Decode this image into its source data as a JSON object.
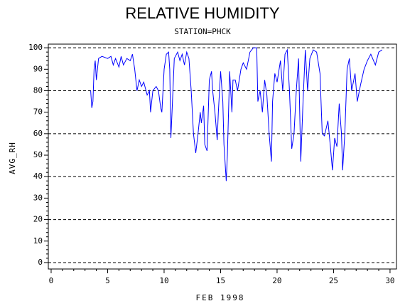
{
  "chart_data": {
    "type": "line",
    "title": "RELATIVE HUMIDITY",
    "subtitle": "STATION=PHCK",
    "x_label": "FEB 1998",
    "y_label": "AVG_RH",
    "xlim": [
      -0.25,
      30.57
    ],
    "ylim": [
      -3,
      101.7
    ],
    "xticks": [
      0,
      5,
      10,
      15,
      20,
      25,
      30
    ],
    "yticks": [
      0,
      10,
      20,
      30,
      40,
      50,
      60,
      70,
      80,
      90,
      100
    ],
    "grid": true,
    "series": [
      {
        "color": "#0000ff",
        "x": [
          3.5,
          3.6,
          3.7,
          3.8,
          3.9,
          4.0,
          4.2,
          4.5,
          5.0,
          5.3,
          5.5,
          5.7,
          6.0,
          6.2,
          6.4,
          6.7,
          7.0,
          7.2,
          7.4,
          7.6,
          7.8,
          8.0,
          8.2,
          8.5,
          8.7,
          8.8,
          9.0,
          9.3,
          9.5,
          9.7,
          9.8,
          10.0,
          10.2,
          10.4,
          10.5,
          10.6,
          10.7,
          10.9,
          11.2,
          11.4,
          11.6,
          11.8,
          12.0,
          12.2,
          12.4,
          12.6,
          12.8,
          13.0,
          13.2,
          13.3,
          13.5,
          13.6,
          13.8,
          14.0,
          14.2,
          14.3,
          14.5,
          14.7,
          14.8,
          15.0,
          15.2,
          15.3,
          15.5,
          15.6,
          15.8,
          16.0,
          16.1,
          16.3,
          16.5,
          16.8,
          17.0,
          17.3,
          17.6,
          17.9,
          18.2,
          18.3,
          18.5,
          18.7,
          18.9,
          19.1,
          19.3,
          19.5,
          19.6,
          19.8,
          20.0,
          20.3,
          20.5,
          20.7,
          20.9,
          21.1,
          21.3,
          21.5,
          21.7,
          21.9,
          22.1,
          22.3,
          22.5,
          22.7,
          22.9,
          23.2,
          23.5,
          23.8,
          24.0,
          24.2,
          24.5,
          24.7,
          24.9,
          25.1,
          25.3,
          25.5,
          25.7,
          25.8,
          26.0,
          26.2,
          26.4,
          26.6,
          26.9,
          27.1,
          27.4,
          27.7,
          28.0,
          28.3,
          28.7,
          29.0,
          29.3
        ],
        "values": [
          80,
          72,
          75,
          90,
          94,
          85,
          95,
          96,
          95,
          96,
          92,
          95,
          91,
          96,
          92,
          95,
          94,
          97,
          90,
          80,
          85,
          82,
          84,
          78,
          80,
          70,
          80,
          82,
          80,
          72,
          70,
          90,
          97,
          98,
          90,
          58,
          70,
          95,
          98,
          94,
          97,
          92,
          98,
          95,
          80,
          60,
          51,
          60,
          70,
          65,
          73,
          55,
          52,
          85,
          89,
          80,
          70,
          57,
          70,
          89,
          75,
          55,
          38,
          50,
          89,
          70,
          85,
          85,
          80,
          90,
          93,
          90,
          98,
          100,
          100,
          75,
          80,
          70,
          85,
          78,
          60,
          47,
          75,
          88,
          84,
          94,
          80,
          97,
          99,
          80,
          53,
          60,
          80,
          95,
          47,
          75,
          99,
          80,
          95,
          99,
          98,
          88,
          60,
          59,
          66,
          55,
          43,
          58,
          54,
          74,
          60,
          43,
          60,
          90,
          95,
          80,
          88,
          75,
          83,
          90,
          94,
          97,
          92,
          98,
          99
        ]
      }
    ]
  }
}
